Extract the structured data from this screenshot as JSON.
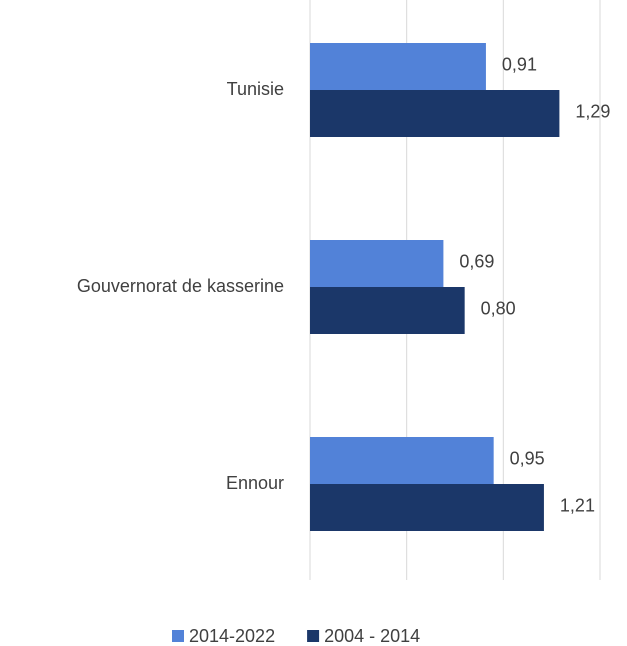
{
  "chart_data": {
    "type": "hbar",
    "categories": [
      "Tunisie",
      "Gouvernorat de kasserine",
      "Ennour"
    ],
    "series": [
      {
        "name": "2014-2022",
        "color": "#5282d8",
        "values": [
          0.91,
          0.69,
          0.95
        ],
        "value_labels": [
          "0,91",
          "0,69",
          "0,95"
        ]
      },
      {
        "name": "2004 - 2014",
        "color": "#1b3769",
        "values": [
          1.29,
          0.8,
          1.21
        ],
        "value_labels": [
          "1,29",
          "0,80",
          "1,21"
        ]
      }
    ],
    "xlim": [
      0,
      1.5
    ],
    "xticks": [
      0,
      0.5,
      1,
      1.5
    ],
    "grid": true,
    "legend": "bottom"
  }
}
